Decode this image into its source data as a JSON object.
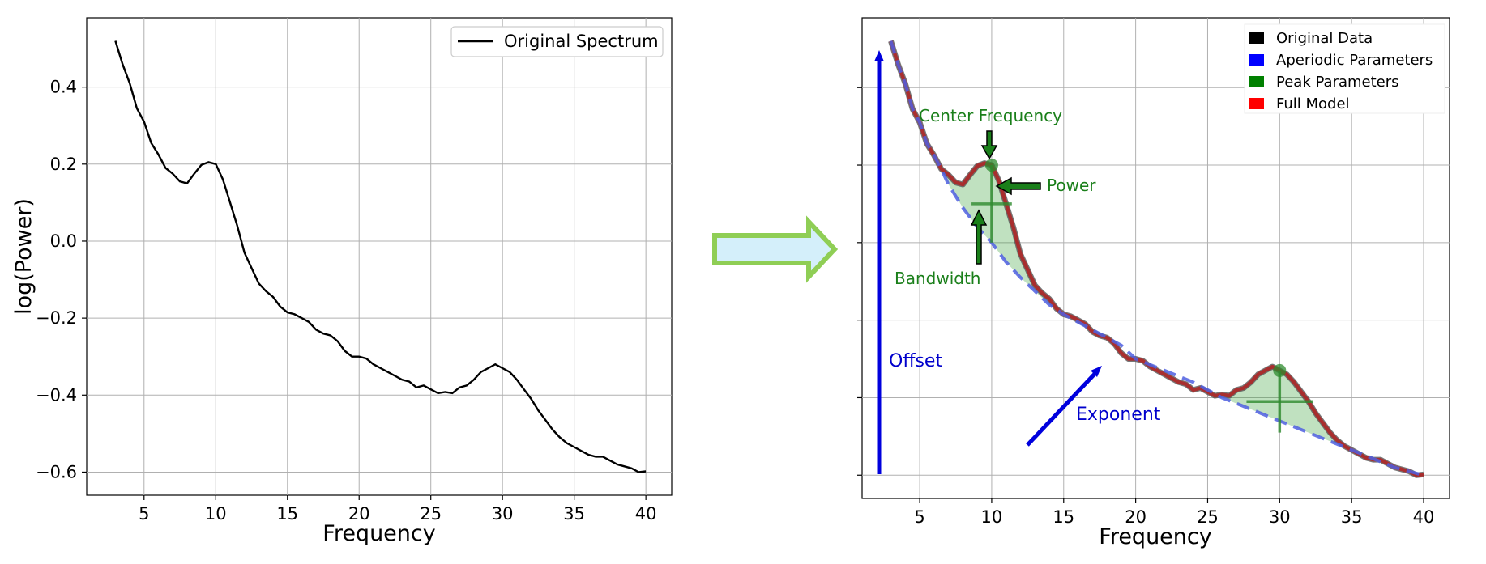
{
  "chart_data": [
    {
      "type": "line",
      "title": "",
      "xlabel": "Frequency",
      "ylabel": "log(Power)",
      "xlim": [
        1,
        41.8
      ],
      "ylim": [
        -0.66,
        0.58
      ],
      "grid": true,
      "legend_position": "top-right",
      "xticks": [
        5,
        10,
        15,
        20,
        25,
        30,
        35,
        40
      ],
      "yticks": [
        0.4,
        0.2,
        0.0,
        -0.2,
        -0.4,
        -0.6
      ],
      "xtick_labels": [
        "5",
        "10",
        "15",
        "20",
        "25",
        "30",
        "35",
        "40"
      ],
      "ytick_labels": [
        "0.4",
        "0.2",
        "0.0",
        "−0.2",
        "−0.4",
        "−0.6"
      ],
      "series": [
        {
          "name": "Original Spectrum",
          "color": "#000000",
          "x": [
            3,
            3.5,
            4,
            4.5,
            5,
            5.5,
            6,
            6.5,
            7,
            7.5,
            8,
            8.5,
            9,
            9.5,
            10,
            10.5,
            11,
            11.5,
            12,
            12.5,
            13,
            13.5,
            14,
            14.5,
            15,
            15.5,
            16,
            16.5,
            17,
            17.5,
            18,
            18.5,
            19,
            19.5,
            20,
            20.5,
            21,
            21.5,
            22,
            22.5,
            23,
            23.5,
            24,
            24.5,
            25,
            25.5,
            26,
            26.5,
            27,
            27.5,
            28,
            28.5,
            29,
            29.5,
            30,
            30.5,
            31,
            31.5,
            32,
            32.5,
            33,
            33.5,
            34,
            34.5,
            35,
            35.5,
            36,
            36.5,
            37,
            37.5,
            38,
            38.5,
            39,
            39.5,
            40
          ],
          "values": [
            0.52,
            0.46,
            0.41,
            0.345,
            0.31,
            0.255,
            0.225,
            0.19,
            0.175,
            0.155,
            0.15,
            0.175,
            0.198,
            0.205,
            0.2,
            0.16,
            0.1,
            0.04,
            -0.03,
            -0.07,
            -0.11,
            -0.13,
            -0.145,
            -0.17,
            -0.185,
            -0.19,
            -0.2,
            -0.21,
            -0.23,
            -0.24,
            -0.245,
            -0.26,
            -0.285,
            -0.3,
            -0.3,
            -0.305,
            -0.32,
            -0.33,
            -0.34,
            -0.35,
            -0.36,
            -0.365,
            -0.38,
            -0.375,
            -0.385,
            -0.395,
            -0.392,
            -0.395,
            -0.38,
            -0.375,
            -0.36,
            -0.34,
            -0.33,
            -0.32,
            -0.33,
            -0.34,
            -0.36,
            -0.385,
            -0.41,
            -0.44,
            -0.465,
            -0.49,
            -0.51,
            -0.525,
            -0.535,
            -0.545,
            -0.555,
            -0.56,
            -0.56,
            -0.57,
            -0.58,
            -0.585,
            -0.59,
            -0.6,
            -0.598
          ]
        }
      ]
    },
    {
      "type": "line",
      "title": "",
      "xlabel": "Frequency",
      "ylabel": "",
      "xlim": [
        1,
        41.8
      ],
      "ylim": [
        -0.66,
        0.58
      ],
      "grid": true,
      "legend_position": "top-right",
      "xticks": [
        5,
        10,
        15,
        20,
        25,
        30,
        35,
        40
      ],
      "yticks": [
        0.4,
        0.2,
        0.0,
        -0.2,
        -0.4,
        -0.6
      ],
      "xtick_labels": [
        "5",
        "10",
        "15",
        "20",
        "25",
        "30",
        "35",
        "40"
      ],
      "legend": [
        {
          "name": "Original Data",
          "color": "#000000"
        },
        {
          "name": "Aperiodic Parameters",
          "color": "#0000ff"
        },
        {
          "name": "Peak Parameters",
          "color": "#008000"
        },
        {
          "name": "Full Model",
          "color": "#ff0000"
        }
      ],
      "aperiodic": {
        "color": "#4f5fe0",
        "x": [
          3,
          3.5,
          4,
          4.5,
          5,
          5.5,
          6,
          6.5,
          7,
          7.5,
          8,
          9,
          10,
          11,
          12,
          13,
          14,
          15,
          16,
          17,
          18,
          19,
          20,
          21,
          22,
          23,
          24,
          25,
          26,
          27,
          28,
          29,
          30,
          31,
          32,
          33,
          34,
          35,
          36,
          37,
          38,
          39,
          40
        ],
        "values": [
          0.52,
          0.46,
          0.41,
          0.345,
          0.31,
          0.255,
          0.225,
          0.19,
          0.15,
          0.12,
          0.09,
          0.04,
          0.0,
          -0.05,
          -0.09,
          -0.125,
          -0.16,
          -0.185,
          -0.205,
          -0.225,
          -0.245,
          -0.265,
          -0.3,
          -0.315,
          -0.33,
          -0.345,
          -0.36,
          -0.38,
          -0.4,
          -0.415,
          -0.43,
          -0.445,
          -0.46,
          -0.475,
          -0.49,
          -0.505,
          -0.52,
          -0.535,
          -0.55,
          -0.565,
          -0.58,
          -0.59,
          -0.6
        ]
      },
      "peaks": [
        {
          "center_frequency": 10,
          "power": 0.2,
          "bandwidth_low": 9.3,
          "bandwidth_high": 10.2,
          "crosshair_y": 0.1,
          "crosshair_top": 0.2,
          "crosshair_bottom": 0.0,
          "half_width": 1.4
        },
        {
          "center_frequency": 30,
          "power": -0.33,
          "crosshair_y": -0.41,
          "crosshair_top": -0.33,
          "crosshair_bottom": -0.49,
          "half_width": 2.3
        }
      ],
      "annotations": {
        "center_frequency": "Center Frequency",
        "power": "Power",
        "bandwidth": "Bandwidth",
        "offset": "Offset",
        "exponent": "Exponent"
      },
      "colors": {
        "full_model": "#b22222",
        "peak_fill": "#2e9a2e",
        "annot_green": "#1a7f1a",
        "annot_blue": "#0000cc",
        "arrow_fill": "#d4effa",
        "arrow_stroke": "#8fce55"
      }
    }
  ]
}
